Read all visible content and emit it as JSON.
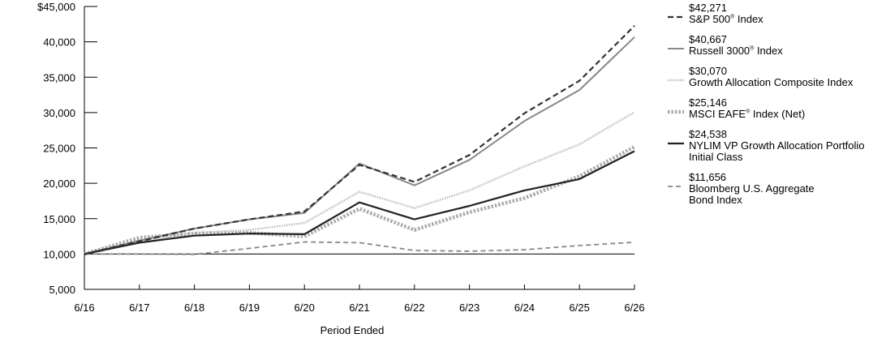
{
  "chart_data": {
    "type": "line",
    "xlabel": "Period Ended",
    "ylabel": "",
    "categories": [
      "6/16",
      "6/17",
      "6/18",
      "6/19",
      "6/20",
      "6/21",
      "6/22",
      "6/23",
      "6/24",
      "6/25",
      "6/26"
    ],
    "ylim": [
      5000,
      45000
    ],
    "yticks": [
      5000,
      10000,
      15000,
      20000,
      25000,
      30000,
      35000,
      40000,
      45000
    ],
    "ytick_labels": [
      "5,000",
      "10,000",
      "15,000",
      "20,000",
      "25,000",
      "30,000",
      "35,000",
      "40,000",
      "$45,000"
    ],
    "reference_line": 10000,
    "legend_position": "right",
    "series": [
      {
        "name": "S&P 500® Index",
        "name_main": "S&P 500",
        "name_sup": "®",
        "name_after": " Index",
        "end_label": "$42,271",
        "color": "#333333",
        "style": "dashed-bold",
        "values": [
          10000,
          11800,
          13600,
          14900,
          16000,
          22600,
          20200,
          24000,
          29900,
          34500,
          42271
        ]
      },
      {
        "name": "Russell 3000® Index",
        "name_main": "Russell 3000",
        "name_sup": "®",
        "name_after": " Index",
        "end_label": "$40,667",
        "color": "#888888",
        "style": "solid",
        "values": [
          10000,
          11900,
          13600,
          14900,
          15800,
          22800,
          19700,
          23300,
          28800,
          33200,
          40667
        ]
      },
      {
        "name": "Growth Allocation Composite Index",
        "name_main": "Growth Allocation Composite Index",
        "name_sup": "",
        "name_after": "",
        "end_label": "$30,070",
        "color": "#bbbbbb",
        "style": "dotted",
        "values": [
          10000,
          11800,
          13000,
          13400,
          14400,
          18800,
          16500,
          19000,
          22400,
          25500,
          30070
        ]
      },
      {
        "name": "MSCI EAFE® Index (Net)",
        "name_main": "MSCI EAFE",
        "name_sup": "®",
        "name_after": " Index (Net)",
        "end_label": "$25,146",
        "color": "#aaaaaa",
        "style": "dotted-thick",
        "values": [
          10000,
          12300,
          12900,
          13000,
          12500,
          16400,
          13400,
          15900,
          17900,
          21000,
          25146
        ]
      },
      {
        "name": "NYLIM VP Growth Allocation Portfolio Initial Class",
        "name_main": "NYLIM VP Growth Allocation Portfolio\nInitial Class",
        "name_sup": "",
        "name_after": "",
        "end_label": "$24,538",
        "color": "#222222",
        "style": "solid-bold",
        "values": [
          10000,
          11600,
          12600,
          12900,
          12800,
          17300,
          14900,
          16800,
          19000,
          20600,
          24538
        ]
      },
      {
        "name": "Bloomberg U.S. Aggregate Bond Index",
        "name_main": "Bloomberg U.S. Aggregate\nBond Index",
        "name_sup": "",
        "name_after": "",
        "end_label": "$11,656",
        "color": "#888888",
        "style": "dashed",
        "values": [
          10000,
          10000,
          9950,
          10800,
          11700,
          11600,
          10500,
          10400,
          10600,
          11200,
          11656
        ]
      }
    ]
  }
}
